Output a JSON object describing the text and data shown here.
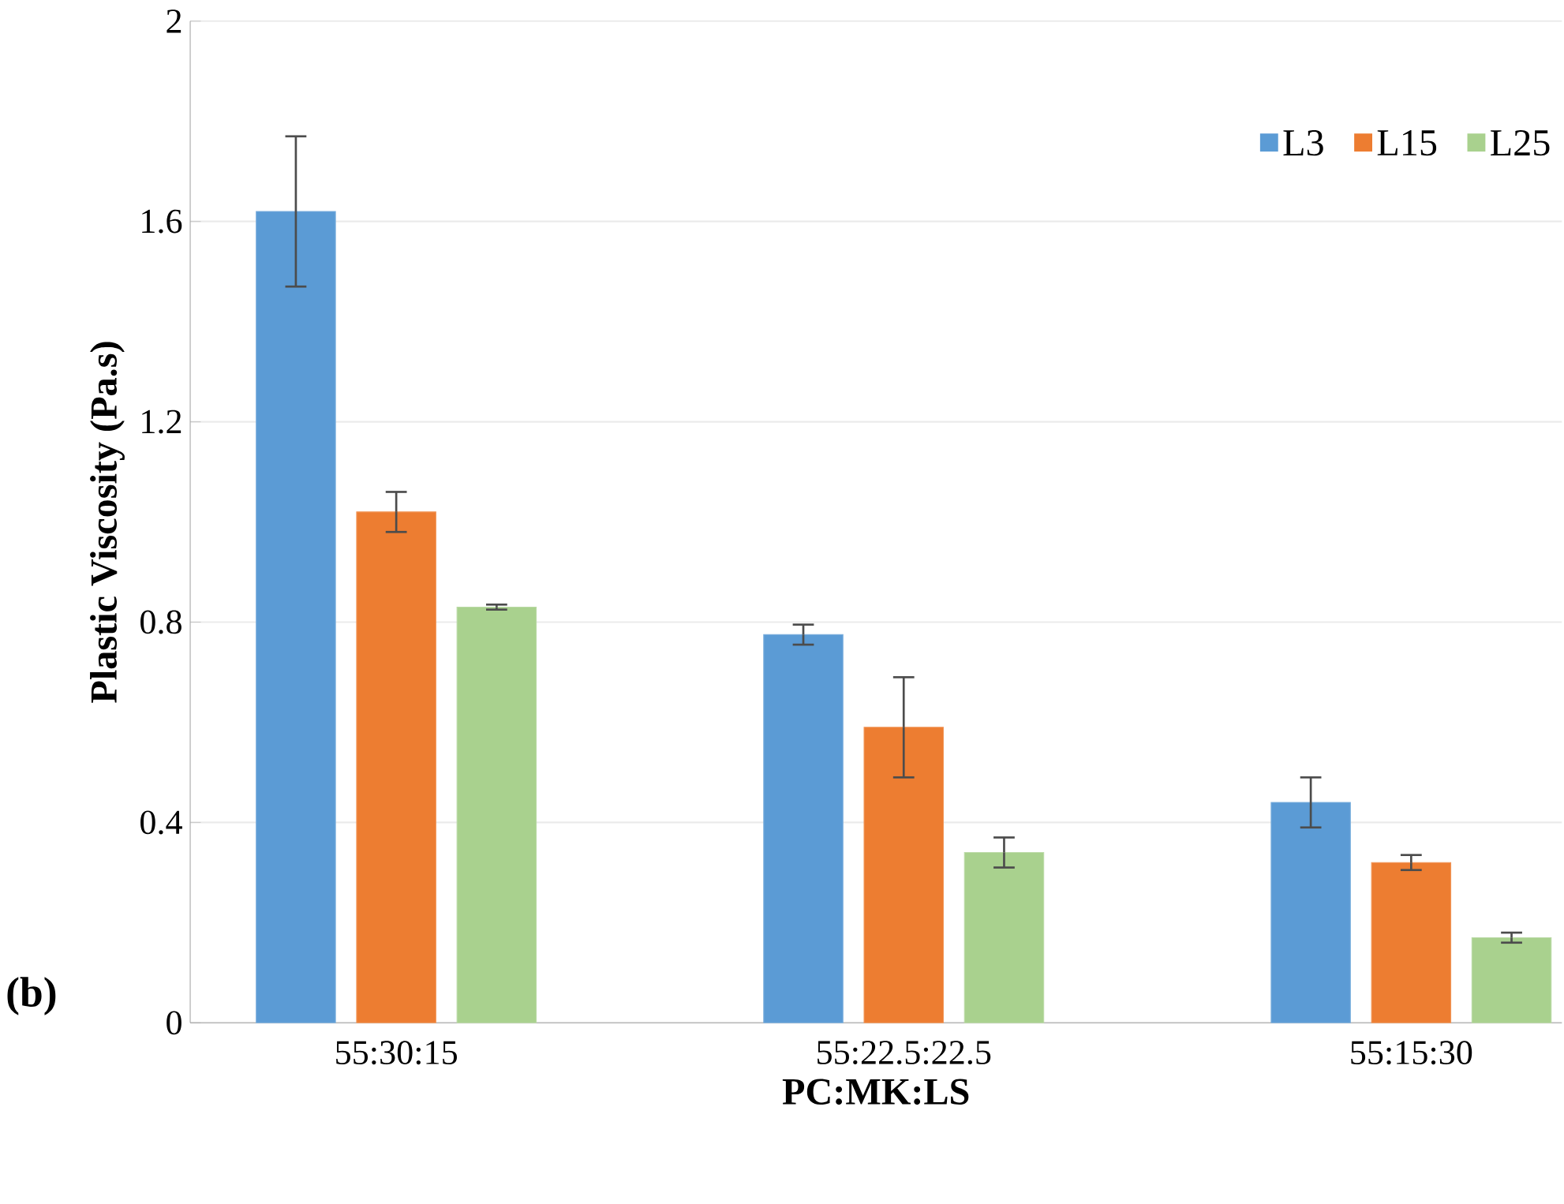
{
  "chart_data": {
    "type": "bar",
    "xlabel": "PC:MK:LS",
    "ylabel": "Plastic Viscosity (Pa.s)",
    "categories": [
      "55:30:15",
      "55:22.5:22.5",
      "55:15:30"
    ],
    "series": [
      {
        "name": "L3",
        "color": "#5b9bd5",
        "values": [
          1.62,
          0.775,
          0.44
        ],
        "errors": [
          0.15,
          0.02,
          0.05
        ]
      },
      {
        "name": "L15",
        "color": "#ed7d31",
        "values": [
          1.02,
          0.59,
          0.32
        ],
        "errors": [
          0.04,
          0.1,
          0.015
        ]
      },
      {
        "name": "L25",
        "color": "#a9d18e",
        "values": [
          0.83,
          0.34,
          0.17
        ],
        "errors": [
          0.005,
          0.03,
          0.01
        ]
      }
    ],
    "ylim": [
      0,
      2
    ],
    "yticks": [
      0,
      0.4,
      0.8,
      1.2,
      1.6,
      2
    ],
    "grid": "y",
    "legend": "top right",
    "annotations": [
      "(b)"
    ]
  }
}
